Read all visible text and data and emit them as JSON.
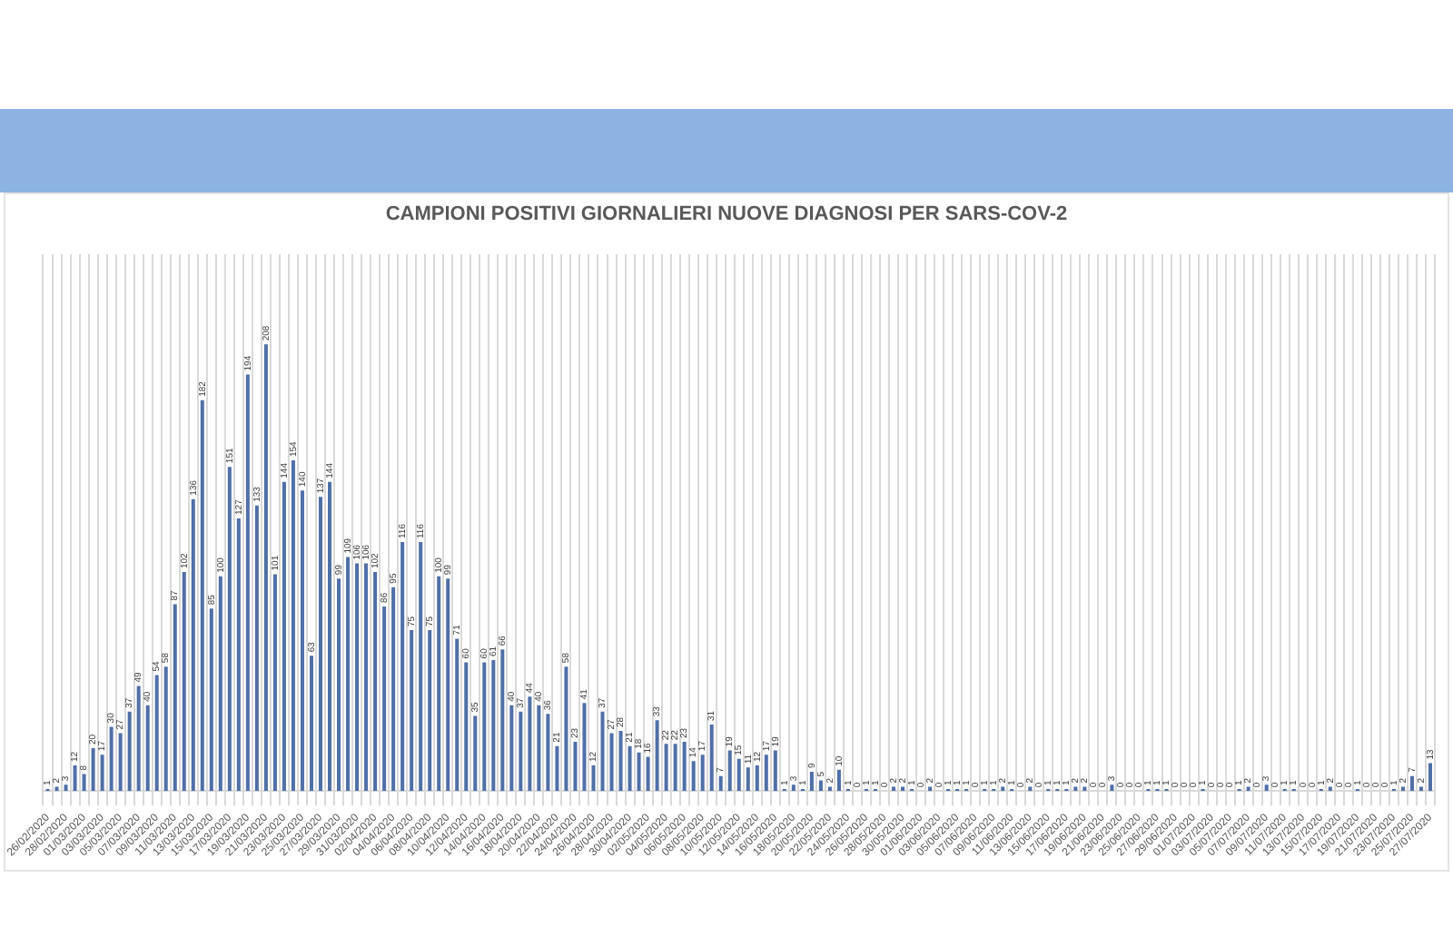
{
  "chart_data": {
    "type": "bar",
    "title": "CAMPIONI POSITIVI GIORNALIERI NUOVE DIAGNOSI PER SARS-COV-2",
    "categories": [
      "26/02/2020",
      null,
      "28/02/2020",
      null,
      "01/03/2020",
      null,
      "03/03/2020",
      null,
      "05/03/2020",
      null,
      "07/03/2020",
      null,
      "09/03/2020",
      null,
      "11/03/2020",
      null,
      "13/03/2020",
      null,
      "15/03/2020",
      null,
      "17/03/2020",
      null,
      "19/03/2020",
      null,
      "21/03/2020",
      null,
      "23/03/2020",
      null,
      "25/03/2020",
      null,
      "27/03/2020",
      null,
      "29/03/2020",
      null,
      "31/03/2020",
      null,
      "02/04/2020",
      null,
      "04/04/2020",
      null,
      "06/04/2020",
      null,
      "08/04/2020",
      null,
      "10/04/2020",
      null,
      "12/04/2020",
      null,
      "14/04/2020",
      null,
      "16/04/2020",
      null,
      "18/04/2020",
      null,
      "20/04/2020",
      null,
      "22/04/2020",
      null,
      "24/04/2020",
      null,
      "26/04/2020",
      null,
      "28/04/2020",
      null,
      "30/04/2020",
      null,
      "02/05/2020",
      null,
      "04/05/2020",
      null,
      "06/05/2020",
      null,
      "08/05/2020",
      null,
      "10/05/2020",
      null,
      "12/05/2020",
      null,
      "14/05/2020",
      null,
      "16/05/2020",
      null,
      "18/05/2020",
      null,
      "20/05/2020",
      null,
      "22/05/2020",
      null,
      "24/05/2020",
      null,
      "26/05/2020",
      null,
      "28/05/2020",
      null,
      "30/05/2020",
      null,
      "01/06/2020",
      null,
      "03/06/2020",
      null,
      "05/06/2020",
      null,
      "07/06/2020",
      null,
      "09/06/2020",
      null,
      "11/06/2020",
      null,
      "13/06/2020",
      null,
      "15/06/2020",
      null,
      "17/06/2020",
      null,
      "19/06/2020",
      null,
      "21/06/2020",
      null,
      "23/06/2020",
      null,
      "25/06/2020",
      null,
      "27/06/2020",
      null,
      "29/06/2020",
      null,
      "01/07/2020",
      null,
      "03/07/2020",
      null,
      "05/07/2020",
      null,
      "07/07/2020",
      null,
      "09/07/2020",
      null,
      "11/07/2020",
      null,
      "13/07/2020",
      null,
      "15/07/2020",
      null,
      "17/07/2020",
      null,
      "19/07/2020",
      null,
      "21/07/2020",
      null,
      "23/07/2020",
      null,
      "25/07/2020",
      null,
      "27/07/2020"
    ],
    "values": [
      1,
      2,
      3,
      12,
      8,
      20,
      17,
      30,
      27,
      37,
      49,
      40,
      54,
      58,
      87,
      102,
      136,
      182,
      85,
      100,
      151,
      127,
      194,
      133,
      208,
      101,
      144,
      154,
      140,
      63,
      137,
      144,
      99,
      109,
      106,
      106,
      102,
      86,
      95,
      116,
      75,
      116,
      75,
      100,
      99,
      71,
      60,
      35,
      60,
      61,
      66,
      40,
      37,
      44,
      40,
      36,
      21,
      58,
      23,
      41,
      12,
      37,
      27,
      28,
      21,
      18,
      16,
      33,
      22,
      22,
      23,
      14,
      17,
      31,
      7,
      19,
      15,
      11,
      12,
      17,
      19,
      1,
      3,
      1,
      9,
      5,
      2,
      10,
      1,
      0,
      1,
      1,
      0,
      2,
      2,
      1,
      0,
      2,
      0,
      1,
      1,
      1,
      0,
      1,
      1,
      2,
      1,
      0,
      2,
      0,
      1,
      1,
      1,
      2,
      2,
      0,
      0,
      3,
      0,
      0,
      0,
      1,
      1,
      1,
      0,
      0,
      0,
      1,
      0,
      0,
      0,
      1,
      2,
      0,
      3,
      0,
      1,
      1,
      0,
      0,
      1,
      2,
      0,
      0,
      1,
      0,
      0,
      0,
      1,
      2,
      7,
      2,
      13
    ],
    "color": "#4f6fa8",
    "data_labels": true,
    "grid": "x",
    "legend": false,
    "tick_labels": "x"
  }
}
